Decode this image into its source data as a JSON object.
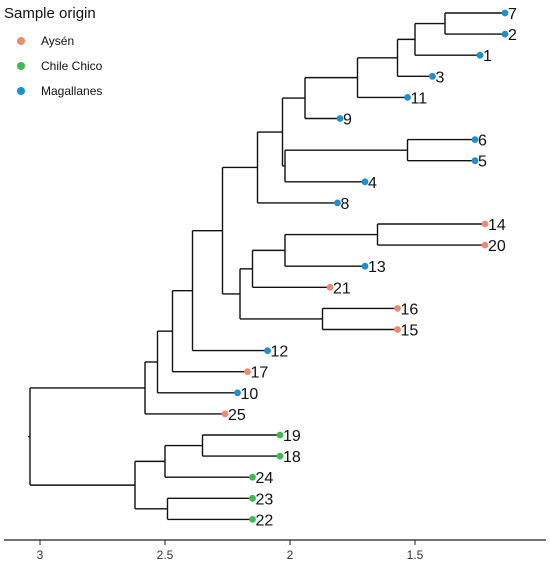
{
  "legend": {
    "title": "Sample origin",
    "items": [
      {
        "label": "Aysén",
        "color": "#F08A6E"
      },
      {
        "label": "Chile Chico",
        "color": "#3DBA4A"
      },
      {
        "label": "Magallanes",
        "color": "#1E8FD0"
      }
    ]
  },
  "axis": {
    "ticks": [
      {
        "value": 3,
        "label": "3"
      },
      {
        "value": 2.5,
        "label": "2.5"
      },
      {
        "value": 2,
        "label": "2"
      },
      {
        "value": 1.5,
        "label": "1.5"
      }
    ]
  },
  "tree": {
    "tips": [
      {
        "label": "7",
        "origin": "Magallanes",
        "h": 1.14
      },
      {
        "label": "2",
        "origin": "Magallanes",
        "h": 1.14
      },
      {
        "label": "1",
        "origin": "Magallanes",
        "h": 1.24
      },
      {
        "label": "3",
        "origin": "Magallanes",
        "h": 1.43
      },
      {
        "label": "11",
        "origin": "Magallanes",
        "h": 1.53
      },
      {
        "label": "9",
        "origin": "Magallanes",
        "h": 1.8
      },
      {
        "label": "6",
        "origin": "Magallanes",
        "h": 1.26
      },
      {
        "label": "5",
        "origin": "Magallanes",
        "h": 1.26
      },
      {
        "label": "4",
        "origin": "Magallanes",
        "h": 1.7
      },
      {
        "label": "8",
        "origin": "Magallanes",
        "h": 1.81
      },
      {
        "label": "14",
        "origin": "Aysén",
        "h": 1.22
      },
      {
        "label": "20",
        "origin": "Aysén",
        "h": 1.22
      },
      {
        "label": "13",
        "origin": "Magallanes",
        "h": 1.7
      },
      {
        "label": "21",
        "origin": "Aysén",
        "h": 1.84
      },
      {
        "label": "16",
        "origin": "Aysén",
        "h": 1.57
      },
      {
        "label": "15",
        "origin": "Aysén",
        "h": 1.57
      },
      {
        "label": "12",
        "origin": "Magallanes",
        "h": 2.09
      },
      {
        "label": "17",
        "origin": "Aysén",
        "h": 2.17
      },
      {
        "label": "10",
        "origin": "Magallanes",
        "h": 2.21
      },
      {
        "label": "25",
        "origin": "Aysén",
        "h": 2.26
      },
      {
        "label": "19",
        "origin": "Chile Chico",
        "h": 2.04
      },
      {
        "label": "18",
        "origin": "Chile Chico",
        "h": 2.04
      },
      {
        "label": "24",
        "origin": "Chile Chico",
        "h": 2.15
      },
      {
        "label": "23",
        "origin": "Chile Chico",
        "h": 2.15
      },
      {
        "label": "22",
        "origin": "Chile Chico",
        "h": 2.15
      }
    ],
    "nodes": [
      {
        "id": "n7_2",
        "h": 1.38,
        "children": [
          "7",
          "2"
        ]
      },
      {
        "id": "n7_1",
        "h": 1.5,
        "children": [
          "n7_2",
          "1"
        ]
      },
      {
        "id": "n7_3",
        "h": 1.57,
        "children": [
          "n7_1",
          "3"
        ]
      },
      {
        "id": "n7_11",
        "h": 1.73,
        "children": [
          "n7_3",
          "11"
        ]
      },
      {
        "id": "n7_9",
        "h": 1.94,
        "children": [
          "n7_11",
          "9"
        ]
      },
      {
        "id": "n6_5",
        "h": 1.53,
        "children": [
          "6",
          "5"
        ]
      },
      {
        "id": "n6_4",
        "h": 2.02,
        "children": [
          "n6_5",
          "4"
        ]
      },
      {
        "id": "nA",
        "h": 2.03,
        "children": [
          "n7_9",
          "n6_4"
        ]
      },
      {
        "id": "nA8",
        "h": 2.13,
        "children": [
          "nA",
          "8"
        ]
      },
      {
        "id": "n14_20",
        "h": 1.65,
        "children": [
          "14",
          "20"
        ]
      },
      {
        "id": "n14_13",
        "h": 2.02,
        "children": [
          "n14_20",
          "13"
        ]
      },
      {
        "id": "n14_21",
        "h": 2.15,
        "children": [
          "n14_13",
          "21"
        ]
      },
      {
        "id": "n16_15",
        "h": 1.87,
        "children": [
          "16",
          "15"
        ]
      },
      {
        "id": "nB",
        "h": 2.2,
        "children": [
          "n14_21",
          "n16_15"
        ]
      },
      {
        "id": "nAB",
        "h": 2.27,
        "children": [
          "nA8",
          "nB"
        ]
      },
      {
        "id": "nAB12",
        "h": 2.39,
        "children": [
          "nAB",
          "12"
        ]
      },
      {
        "id": "nAB17",
        "h": 2.47,
        "children": [
          "nAB12",
          "17"
        ]
      },
      {
        "id": "nAB10",
        "h": 2.53,
        "children": [
          "nAB17",
          "10"
        ]
      },
      {
        "id": "nAB25",
        "h": 2.58,
        "children": [
          "nAB10",
          "25"
        ]
      },
      {
        "id": "n19_18",
        "h": 2.35,
        "children": [
          "19",
          "18"
        ]
      },
      {
        "id": "n19_24",
        "h": 2.5,
        "children": [
          "n19_18",
          "24"
        ]
      },
      {
        "id": "n23_22",
        "h": 2.49,
        "children": [
          "23",
          "22"
        ]
      },
      {
        "id": "nCC",
        "h": 2.62,
        "children": [
          "n19_24",
          "n23_22"
        ]
      },
      {
        "id": "root",
        "h": 3.04,
        "children": [
          "nAB25",
          "nCC"
        ]
      }
    ],
    "root": "root"
  }
}
